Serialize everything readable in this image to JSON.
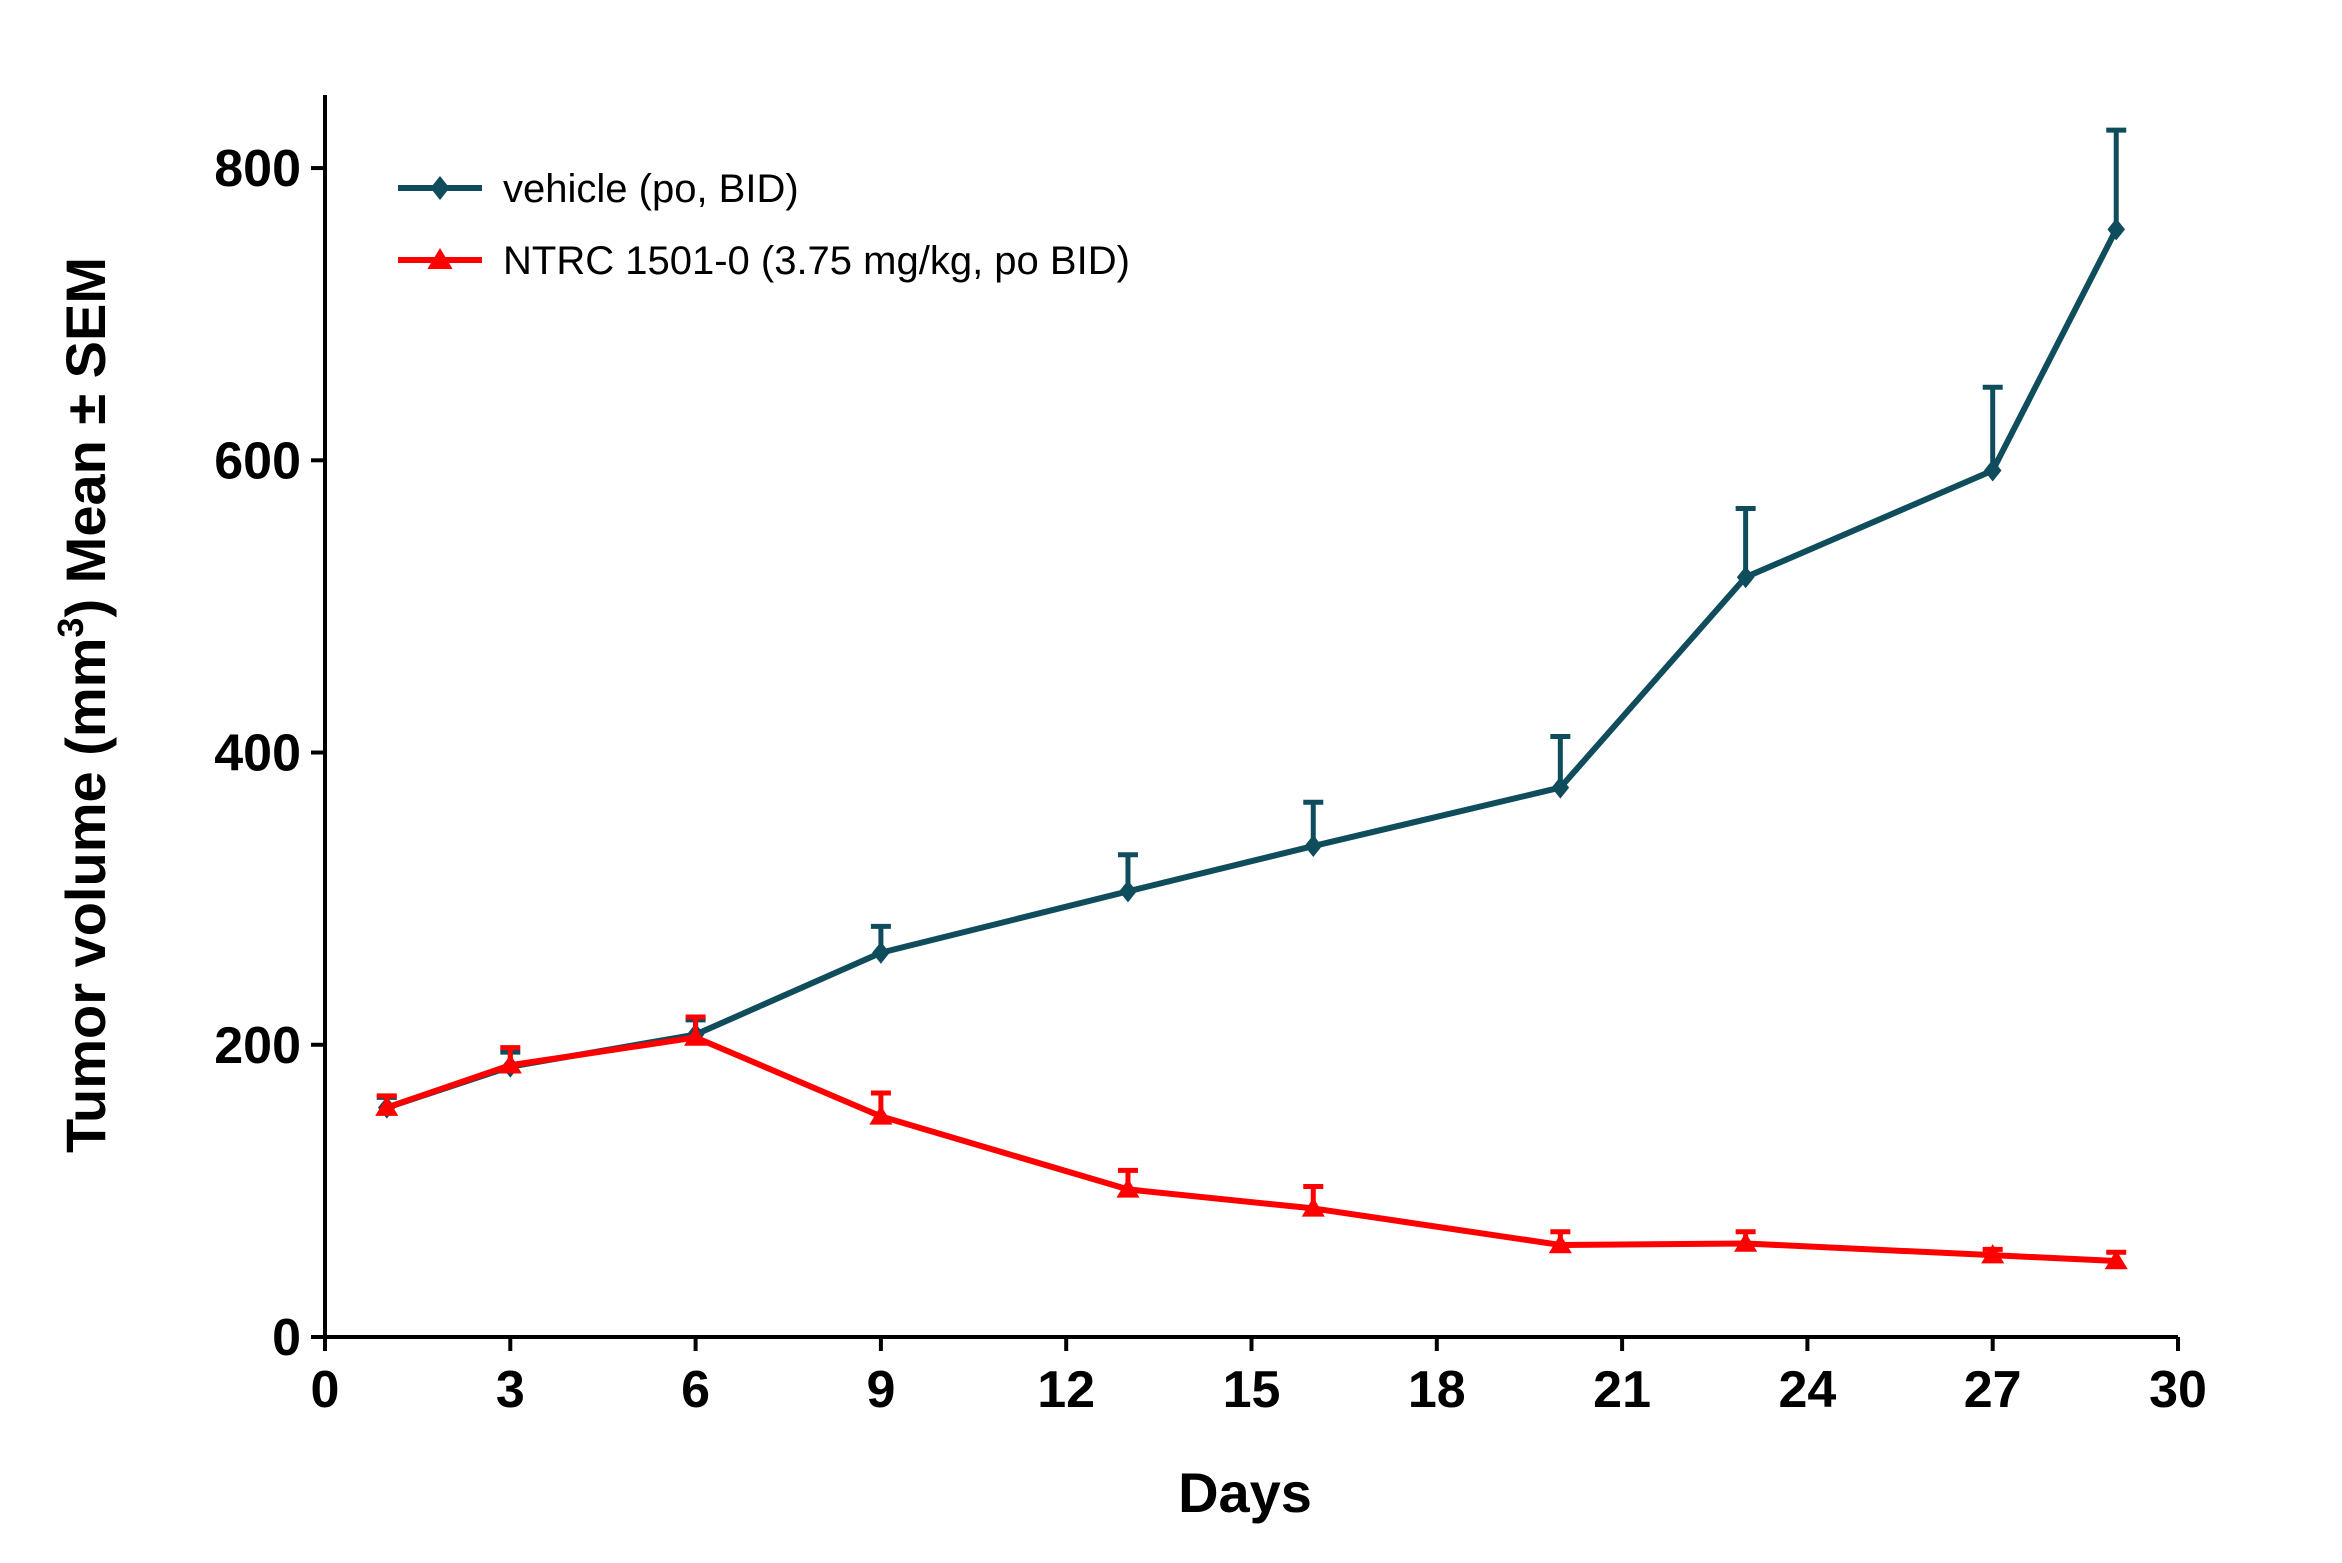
{
  "chart_data": {
    "type": "line",
    "xlabel": "Days",
    "ylabel_main": "Tumor volume (mm",
    "ylabel_sup": "3",
    "ylabel_rest": ") Mean ± SEM",
    "xlim": [
      0,
      30
    ],
    "ylim": [
      0,
      850
    ],
    "xticks": [
      0,
      3,
      6,
      9,
      12,
      15,
      18,
      21,
      24,
      27,
      30
    ],
    "yticks": [
      0,
      200,
      400,
      600,
      800
    ],
    "grid": false,
    "legend_position": "top-left",
    "series": [
      {
        "name": "vehicle (po, BID)",
        "color": "#0f4c5c",
        "marker": "diamond",
        "x": [
          1,
          3,
          6,
          9,
          13,
          16,
          20,
          23,
          27,
          29
        ],
        "y": [
          157,
          185,
          207,
          263,
          305,
          336,
          376,
          520,
          593,
          758
        ],
        "error": [
          7,
          10,
          10,
          18,
          25,
          30,
          35,
          47,
          57,
          68
        ]
      },
      {
        "name": "NTRC 1501-0 (3.75 mg/kg, po BID)",
        "color": "#ff0000",
        "marker": "triangle",
        "x": [
          1,
          3,
          6,
          9,
          13,
          16,
          20,
          23,
          27,
          29
        ],
        "y": [
          157,
          186,
          205,
          151,
          101,
          88,
          63,
          64,
          56,
          52
        ],
        "error": [
          8,
          12,
          14,
          16,
          13,
          15,
          9,
          8,
          4,
          6
        ]
      }
    ]
  }
}
